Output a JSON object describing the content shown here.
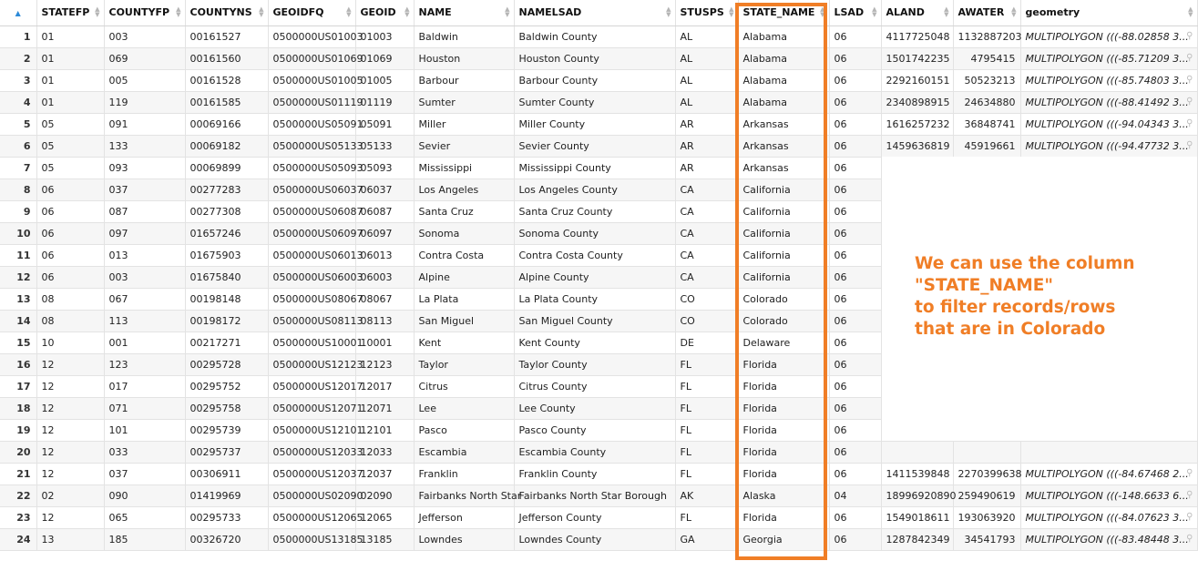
{
  "columns": [
    {
      "label": "STATEFP",
      "name": "col-statefp"
    },
    {
      "label": "COUNTYFP",
      "name": "col-countyfp"
    },
    {
      "label": "COUNTYNS",
      "name": "col-countyns"
    },
    {
      "label": "GEOIDFQ",
      "name": "col-geoidfq"
    },
    {
      "label": "GEOID",
      "name": "col-geoid"
    },
    {
      "label": "NAME",
      "name": "col-name"
    },
    {
      "label": "NAMELSAD",
      "name": "col-namelsad"
    },
    {
      "label": "STUSPS",
      "name": "col-stusps"
    },
    {
      "label": "STATE_NAME",
      "name": "col-state-name"
    },
    {
      "label": "LSAD",
      "name": "col-lsad"
    },
    {
      "label": "ALAND",
      "name": "col-aland"
    },
    {
      "label": "AWATER",
      "name": "col-awater"
    },
    {
      "label": "geometry",
      "name": "col-geometry"
    }
  ],
  "rows": [
    [
      "1",
      "01",
      "003",
      "00161527",
      "0500000US01003",
      "01003",
      "Baldwin",
      "Baldwin County",
      "AL",
      "Alabama",
      "06",
      "4117725048",
      "1132887203",
      "MULTIPOLYGON (((-88.02858 3..."
    ],
    [
      "2",
      "01",
      "069",
      "00161560",
      "0500000US01069",
      "01069",
      "Houston",
      "Houston County",
      "AL",
      "Alabama",
      "06",
      "1501742235",
      "4795415",
      "MULTIPOLYGON (((-85.71209 3..."
    ],
    [
      "3",
      "01",
      "005",
      "00161528",
      "0500000US01005",
      "01005",
      "Barbour",
      "Barbour County",
      "AL",
      "Alabama",
      "06",
      "2292160151",
      "50523213",
      "MULTIPOLYGON (((-85.74803 3..."
    ],
    [
      "4",
      "01",
      "119",
      "00161585",
      "0500000US01119",
      "01119",
      "Sumter",
      "Sumter County",
      "AL",
      "Alabama",
      "06",
      "2340898915",
      "24634880",
      "MULTIPOLYGON (((-88.41492 3..."
    ],
    [
      "5",
      "05",
      "091",
      "00069166",
      "0500000US05091",
      "05091",
      "Miller",
      "Miller County",
      "AR",
      "Arkansas",
      "06",
      "1616257232",
      "36848741",
      "MULTIPOLYGON (((-94.04343 3..."
    ],
    [
      "6",
      "05",
      "133",
      "00069182",
      "0500000US05133",
      "05133",
      "Sevier",
      "Sevier County",
      "AR",
      "Arkansas",
      "06",
      "1459636819",
      "45919661",
      "MULTIPOLYGON (((-94.47732 3..."
    ],
    [
      "7",
      "05",
      "093",
      "00069899",
      "0500000US05093",
      "05093",
      "Mississippi",
      "Mississippi County",
      "AR",
      "Arkansas",
      "06",
      "",
      "",
      ""
    ],
    [
      "8",
      "06",
      "037",
      "00277283",
      "0500000US06037",
      "06037",
      "Los Angeles",
      "Los Angeles County",
      "CA",
      "California",
      "06",
      "",
      "",
      ""
    ],
    [
      "9",
      "06",
      "087",
      "00277308",
      "0500000US06087",
      "06087",
      "Santa Cruz",
      "Santa Cruz County",
      "CA",
      "California",
      "06",
      "",
      "",
      ""
    ],
    [
      "10",
      "06",
      "097",
      "01657246",
      "0500000US06097",
      "06097",
      "Sonoma",
      "Sonoma County",
      "CA",
      "California",
      "06",
      "",
      "",
      ""
    ],
    [
      "11",
      "06",
      "013",
      "01675903",
      "0500000US06013",
      "06013",
      "Contra Costa",
      "Contra Costa County",
      "CA",
      "California",
      "06",
      "",
      "",
      ""
    ],
    [
      "12",
      "06",
      "003",
      "01675840",
      "0500000US06003",
      "06003",
      "Alpine",
      "Alpine County",
      "CA",
      "California",
      "06",
      "",
      "",
      ""
    ],
    [
      "13",
      "08",
      "067",
      "00198148",
      "0500000US08067",
      "08067",
      "La Plata",
      "La Plata County",
      "CO",
      "Colorado",
      "06",
      "",
      "",
      ""
    ],
    [
      "14",
      "08",
      "113",
      "00198172",
      "0500000US08113",
      "08113",
      "San Miguel",
      "San Miguel County",
      "CO",
      "Colorado",
      "06",
      "",
      "",
      ""
    ],
    [
      "15",
      "10",
      "001",
      "00217271",
      "0500000US10001",
      "10001",
      "Kent",
      "Kent County",
      "DE",
      "Delaware",
      "06",
      "",
      "",
      ""
    ],
    [
      "16",
      "12",
      "123",
      "00295728",
      "0500000US12123",
      "12123",
      "Taylor",
      "Taylor County",
      "FL",
      "Florida",
      "06",
      "",
      "",
      ""
    ],
    [
      "17",
      "12",
      "017",
      "00295752",
      "0500000US12017",
      "12017",
      "Citrus",
      "Citrus County",
      "FL",
      "Florida",
      "06",
      "",
      "",
      ""
    ],
    [
      "18",
      "12",
      "071",
      "00295758",
      "0500000US12071",
      "12071",
      "Lee",
      "Lee County",
      "FL",
      "Florida",
      "06",
      "",
      "",
      ""
    ],
    [
      "19",
      "12",
      "101",
      "00295739",
      "0500000US12101",
      "12101",
      "Pasco",
      "Pasco County",
      "FL",
      "Florida",
      "06",
      "",
      "",
      ""
    ],
    [
      "20",
      "12",
      "033",
      "00295737",
      "0500000US12033",
      "12033",
      "Escambia",
      "Escambia County",
      "FL",
      "Florida",
      "06",
      "",
      "",
      ""
    ],
    [
      "21",
      "12",
      "037",
      "00306911",
      "0500000US12037",
      "12037",
      "Franklin",
      "Franklin County",
      "FL",
      "Florida",
      "06",
      "1411539848",
      "2270399638",
      "MULTIPOLYGON (((-84.67468 2..."
    ],
    [
      "22",
      "02",
      "090",
      "01419969",
      "0500000US02090",
      "02090",
      "Fairbanks North Star",
      "Fairbanks North Star Borough",
      "AK",
      "Alaska",
      "04",
      "18996920890",
      "259490619",
      "MULTIPOLYGON (((-148.6633 6..."
    ],
    [
      "23",
      "12",
      "065",
      "00295733",
      "0500000US12065",
      "12065",
      "Jefferson",
      "Jefferson County",
      "FL",
      "Florida",
      "06",
      "1549018611",
      "193063920",
      "MULTIPOLYGON (((-84.07623 3..."
    ],
    [
      "24",
      "13",
      "185",
      "00326720",
      "0500000US13185",
      "13185",
      "Lowndes",
      "Lowndes County",
      "GA",
      "Georgia",
      "06",
      "1287842349",
      "34541793",
      "MULTIPOLYGON (((-83.48448 3..."
    ]
  ],
  "callout": {
    "lines": [
      "We can use the column",
      "\"STATE_NAME\"",
      "to filter records/rows",
      "that are in Colorado"
    ]
  },
  "colors": {
    "highlight": "#f07e26",
    "callout_text": "#f07e26",
    "sort_active": "#2c8ad8"
  },
  "icons": {
    "sort_asc": "triangle-up-icon",
    "sort": "sort-arrows-icon",
    "cell_view": "magnifier-icon"
  }
}
